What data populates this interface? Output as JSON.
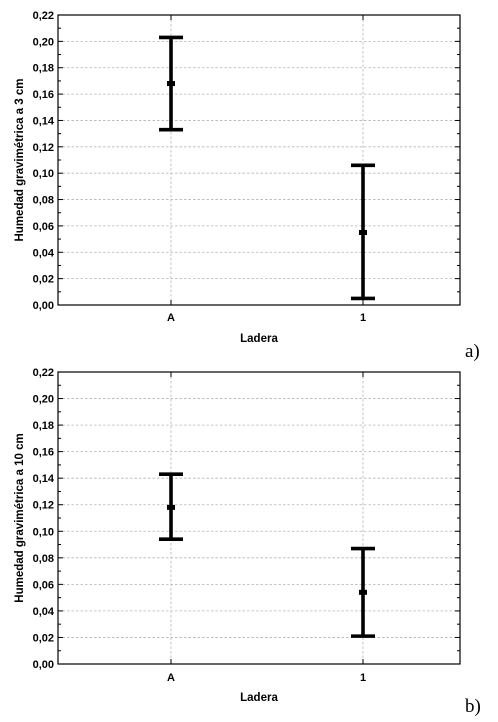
{
  "chart_data": [
    {
      "type": "errorbar",
      "panel_label": "a)",
      "title": "",
      "xlabel": "Ladera",
      "ylabel": "Humedad gravimétrica a 3 cm",
      "categories": [
        "A",
        "1"
      ],
      "series": [
        {
          "mean": [
            0.168,
            0.055
          ],
          "lower": [
            0.133,
            0.005
          ],
          "upper": [
            0.203,
            0.106
          ]
        }
      ],
      "ylim": [
        0,
        0.22
      ],
      "yticks": [
        "0,00",
        "0,02",
        "0,04",
        "0,06",
        "0,08",
        "0,10",
        "0,12",
        "0,14",
        "0,16",
        "0,18",
        "0,20",
        "0,22"
      ],
      "grid": true,
      "legend": "none"
    },
    {
      "type": "errorbar",
      "panel_label": "b)",
      "title": "",
      "xlabel": "Ladera",
      "ylabel": "Humedad gravimétrica a 10 cm",
      "categories": [
        "A",
        "1"
      ],
      "series": [
        {
          "mean": [
            0.118,
            0.054
          ],
          "lower": [
            0.094,
            0.021
          ],
          "upper": [
            0.143,
            0.087
          ]
        }
      ],
      "ylim": [
        0,
        0.22
      ],
      "yticks": [
        "0,00",
        "0,02",
        "0,04",
        "0,06",
        "0,08",
        "0,10",
        "0,12",
        "0,14",
        "0,16",
        "0,18",
        "0,20",
        "0,22"
      ],
      "grid": true,
      "legend": "none"
    }
  ]
}
